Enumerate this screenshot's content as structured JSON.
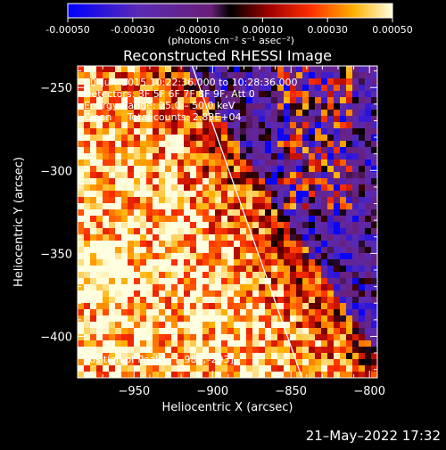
{
  "colorbar": {
    "ticks": [
      "-0.00050",
      "-0.00030",
      "-0.00010",
      "0.00010",
      "0.00030",
      "0.00050"
    ],
    "unit_label": "(photons cm⁻² s⁻¹ asec⁻²)",
    "range": [
      -0.0005,
      0.0005
    ]
  },
  "chart_data": {
    "type": "heatmap",
    "title": "Reconstructed RHESSI Image",
    "xlabel": "Heliocentric X (arcsec)",
    "ylabel": "Heliocentric Y (arcsec)",
    "xlim": [
      -986,
      -795
    ],
    "ylim": [
      -425,
      -237
    ],
    "x_ticks": [
      -950,
      -900,
      -850,
      -800
    ],
    "y_ticks": [
      -250,
      -300,
      -350,
      -400
    ],
    "x_tick_labels": [
      "−950",
      "−900",
      "−850",
      "−800"
    ],
    "y_tick_labels": [
      "−250",
      "−300",
      "−350",
      "−400"
    ],
    "annotations": [
      "10–Jun–2015 10:22:36.000 to 10:28:36.000",
      "Detectors: 3F 5F 6F 7F 8F 9F, Att 0",
      "Energy Range: 25.0 – 50.0 keV",
      "Clean     Total counts: 2.83E+04"
    ],
    "peak_label": "Position of Peak = [–988,–293]",
    "peak": [
      -988,
      -293
    ],
    "limb_line": [
      [
        -913,
        -237
      ],
      [
        -843,
        -425
      ]
    ]
  },
  "datestamp": "21–May–2022 17:32"
}
